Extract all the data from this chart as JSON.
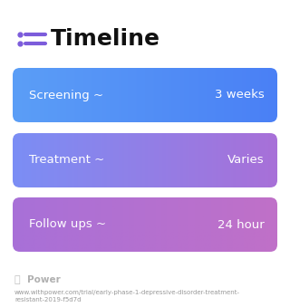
{
  "title": "Timeline",
  "background_color": "#ffffff",
  "rows": [
    {
      "label": "Screening ~",
      "value": "3 weeks",
      "color_left": "#5b9ef7",
      "color_right": "#4a80f5"
    },
    {
      "label": "Treatment ~",
      "value": "Varies",
      "color_left": "#7b8ef5",
      "color_right": "#a870d8"
    },
    {
      "label": "Follow ups ~",
      "value": "24 hour",
      "color_left": "#a870d8",
      "color_right": "#c070c8"
    }
  ],
  "icon_color": "#7c5cdb",
  "icon_dot_color": "#7c5cdb",
  "title_fontsize": 18,
  "label_fontsize": 9.5,
  "value_fontsize": 9.5,
  "footer_logo_color": "#b0b0b0",
  "footer_power_text": "Power",
  "footer_url": "www.withpower.com/trial/early-phase-1-depressive-disorder-treatment-\nresistant-2019-f5d7d",
  "footer_fontsize": 5.0,
  "footer_power_fontsize": 7.5
}
